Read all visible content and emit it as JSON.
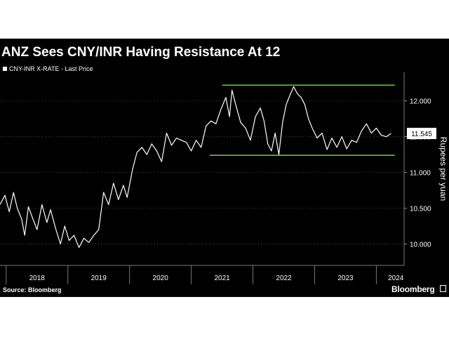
{
  "chart_data": {
    "type": "line",
    "title": "ANZ Sees CNY/INR Having Resistance At 12",
    "legend": "CNY-INR X-RATE - Last Price",
    "ylabel": "Rupees per yuan",
    "ylim": [
      9.7,
      12.4
    ],
    "xlim": [
      2017.9,
      2024.45
    ],
    "y_ticks": [
      "12.000",
      "11.500",
      "11.000",
      "10.500",
      "10.000"
    ],
    "y_tick_values": [
      12.0,
      11.5,
      11.0,
      10.5,
      10.0
    ],
    "x_ticks": [
      "2018",
      "2019",
      "2020",
      "2021",
      "2022",
      "2023",
      "2024"
    ],
    "x_tick_values": [
      2018,
      2019,
      2020,
      2021,
      2022,
      2023,
      2024
    ],
    "last_price_label": "11.545",
    "last_price": 11.545,
    "resistance_lines": [
      {
        "y": 12.22,
        "x_from": 2021.5,
        "x_to": 2024.3,
        "color": "#6ac13a"
      },
      {
        "y": 11.24,
        "x_from": 2021.3,
        "x_to": 2024.3,
        "color": "#6ac13a"
      }
    ],
    "series": [
      {
        "line_color": "#ffffff",
        "x": [
          2017.9,
          2017.98,
          2018.05,
          2018.12,
          2018.18,
          2018.25,
          2018.3,
          2018.36,
          2018.42,
          2018.5,
          2018.58,
          2018.66,
          2018.72,
          2018.8,
          2018.88,
          2018.95,
          2019.02,
          2019.1,
          2019.18,
          2019.26,
          2019.34,
          2019.42,
          2019.5,
          2019.58,
          2019.66,
          2019.74,
          2019.82,
          2019.9,
          2019.96,
          2020.05,
          2020.12,
          2020.2,
          2020.28,
          2020.36,
          2020.44,
          2020.52,
          2020.6,
          2020.68,
          2020.76,
          2020.84,
          2020.92,
          2021.0,
          2021.08,
          2021.16,
          2021.24,
          2021.32,
          2021.4,
          2021.48,
          2021.56,
          2021.62,
          2021.66,
          2021.72,
          2021.8,
          2021.88,
          2021.96,
          2022.04,
          2022.12,
          2022.18,
          2022.24,
          2022.3,
          2022.36,
          2022.42,
          2022.48,
          2022.54,
          2022.6,
          2022.66,
          2022.72,
          2022.78,
          2022.84,
          2022.9,
          2022.96,
          2023.04,
          2023.12,
          2023.2,
          2023.28,
          2023.36,
          2023.44,
          2023.52,
          2023.6,
          2023.68,
          2023.76,
          2023.84,
          2023.92,
          2024.0,
          2024.08,
          2024.16,
          2024.24
        ],
        "y": [
          10.55,
          10.68,
          10.45,
          10.72,
          10.5,
          10.35,
          10.12,
          10.52,
          10.38,
          10.2,
          10.55,
          10.3,
          10.48,
          10.22,
          10.0,
          10.25,
          10.05,
          10.12,
          9.95,
          10.08,
          10.02,
          10.12,
          10.2,
          10.72,
          10.55,
          10.85,
          10.62,
          10.82,
          10.65,
          11.05,
          11.28,
          11.35,
          11.25,
          11.4,
          11.3,
          11.15,
          11.55,
          11.38,
          11.48,
          11.45,
          11.42,
          11.3,
          11.45,
          11.35,
          11.65,
          11.72,
          11.68,
          11.88,
          12.05,
          11.78,
          12.15,
          11.95,
          11.7,
          11.62,
          11.45,
          11.78,
          11.9,
          11.72,
          11.4,
          11.3,
          11.55,
          11.25,
          11.7,
          11.95,
          12.08,
          12.2,
          12.1,
          12.05,
          11.95,
          11.75,
          11.62,
          11.48,
          11.55,
          11.32,
          11.48,
          11.35,
          11.5,
          11.33,
          11.45,
          11.42,
          11.58,
          11.68,
          11.55,
          11.62,
          11.52,
          11.5,
          11.545
        ]
      }
    ]
  },
  "footer": {
    "source": "Source: Bloomberg",
    "brand": "Bloomberg"
  },
  "colors": {
    "background": "#000000",
    "line": "#ffffff",
    "resistance": "#6ac13a"
  }
}
